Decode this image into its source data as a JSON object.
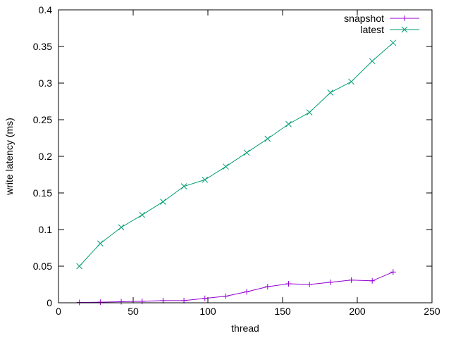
{
  "chart_data": {
    "type": "line",
    "title": "",
    "xlabel": "thread",
    "ylabel": "write latency (ms)",
    "xlim": [
      0,
      250
    ],
    "ylim": [
      0,
      0.4
    ],
    "xticks": [
      0,
      50,
      100,
      150,
      200,
      250
    ],
    "xtick_labels": [
      "0",
      "50",
      "100",
      "150",
      "200",
      "250"
    ],
    "yticks": [
      0,
      0.05,
      0.1,
      0.15,
      0.2,
      0.25,
      0.3,
      0.35,
      0.4
    ],
    "ytick_labels": [
      "0",
      "0.05",
      "0.1",
      "0.15",
      "0.2",
      "0.25",
      "0.3",
      "0.35",
      "0.4"
    ],
    "grid": false,
    "legend_position": "top-right",
    "x": [
      14,
      28,
      42,
      56,
      70,
      84,
      98,
      112,
      126,
      140,
      154,
      168,
      182,
      196,
      210,
      224
    ],
    "series": [
      {
        "name": "snapshot",
        "color": "#9400d3",
        "marker": "plus",
        "values": [
          0.0005,
          0.0008,
          0.0015,
          0.002,
          0.003,
          0.003,
          0.006,
          0.009,
          0.015,
          0.022,
          0.026,
          0.025,
          0.028,
          0.031,
          0.03,
          0.042
        ]
      },
      {
        "name": "latest",
        "color": "#009e73",
        "marker": "cross",
        "values": [
          0.05,
          0.081,
          0.103,
          0.12,
          0.138,
          0.159,
          0.168,
          0.186,
          0.205,
          0.224,
          0.244,
          0.26,
          0.287,
          0.302,
          0.33,
          0.355
        ]
      }
    ]
  }
}
